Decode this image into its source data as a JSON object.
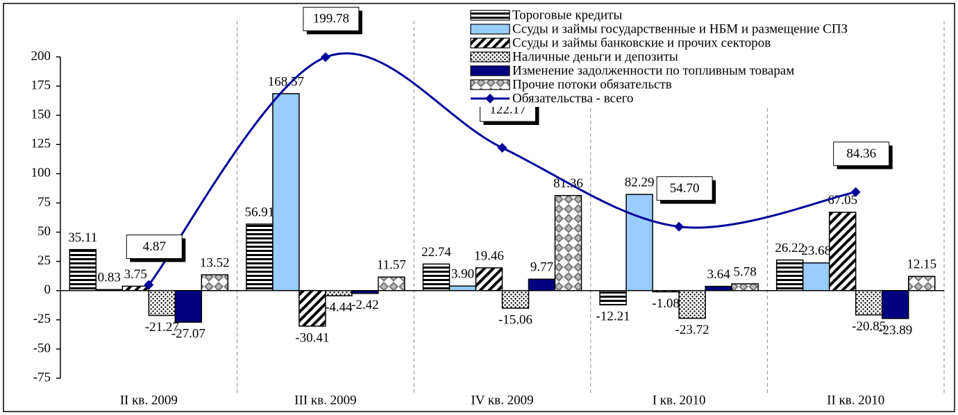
{
  "chart_data": {
    "type": "bar",
    "categories": [
      "II кв. 2009",
      "III кв. 2009",
      "IV кв. 2009",
      "I кв. 2010",
      "II кв. 2010"
    ],
    "series": [
      {
        "name": "Тороговые кредиты",
        "color": "#000000",
        "pattern": "horizontal",
        "values": [
          35.11,
          56.91,
          22.74,
          -12.21,
          26.22
        ],
        "value_labels": [
          "35.11",
          "56.91",
          "22.74",
          "-12.21",
          "26.22"
        ]
      },
      {
        "name": "Ссуды и займы государственные и НБМ и размещение СПЗ",
        "color": "#99ccff",
        "pattern": "solid",
        "values": [
          0.83,
          168.57,
          3.9,
          82.29,
          23.68
        ],
        "value_labels": [
          "0.83",
          "168.57",
          "3.90",
          "82.29",
          "23.68"
        ]
      },
      {
        "name": "Ссуды и займы банковские и прочих секторов",
        "color": "#000000",
        "pattern": "diagonal",
        "values": [
          3.75,
          -30.41,
          19.46,
          -1.08,
          67.05
        ],
        "value_labels": [
          "3.75",
          "-30.41",
          "19.46",
          "-1.08",
          "67.05"
        ]
      },
      {
        "name": "Наличные деньги и депозиты",
        "color": "#000000",
        "pattern": "dots",
        "values": [
          -21.27,
          -4.44,
          -15.06,
          -23.72,
          -20.85
        ],
        "value_labels": [
          "-21.27",
          "-4.44",
          "-15.06",
          "-23.72",
          "-20.85"
        ]
      },
      {
        "name": "Изменение задолженности по топливным товарам",
        "color": "#000080",
        "pattern": "solid",
        "values": [
          -27.07,
          -2.42,
          9.77,
          3.64,
          -23.89
        ],
        "value_labels": [
          "-27.07",
          "-2.42",
          "9.77",
          "3.64",
          "-23.89"
        ]
      },
      {
        "name": "Прочие потоки обязательств",
        "color": "#808080",
        "pattern": "diamonds",
        "values": [
          13.52,
          11.57,
          81.36,
          5.78,
          12.15
        ],
        "value_labels": [
          "13.52",
          "11.57",
          "81.36",
          "5.78",
          "12.15"
        ]
      },
      {
        "name": "Обязательства - всего",
        "color": "#000099",
        "type": "line",
        "values": [
          4.87,
          199.78,
          122.17,
          54.7,
          84.36
        ],
        "value_labels": [
          "4.87",
          "199.78",
          "122.17",
          "54.70",
          "84.36"
        ]
      }
    ],
    "ylim": [
      -75,
      200
    ],
    "yticks": [
      -75,
      -50,
      -25,
      0,
      25,
      50,
      75,
      100,
      125,
      150,
      175,
      200
    ],
    "grid": false,
    "legend": "top"
  }
}
